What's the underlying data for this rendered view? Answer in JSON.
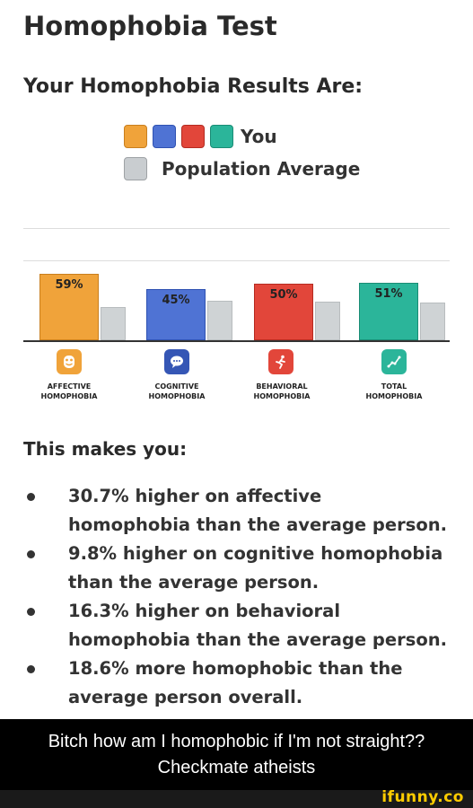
{
  "page": {
    "title": "Homophobia Test",
    "results_heading": "Your Homophobia Results Are:"
  },
  "legend": {
    "you_label": "You",
    "population_label": "Population Average",
    "you_colors": [
      "#f0a33a",
      "#4f73d4",
      "#e2463a",
      "#2bb59a"
    ],
    "population_color": "#c9cdd0"
  },
  "chart_data": {
    "type": "bar",
    "categories": [
      "AFFECTIVE HOMOPHOBIA",
      "COGNITIVE HOMOPHOBIA",
      "BEHAVIORAL HOMOPHOBIA",
      "TOTAL HOMOPHOBIA"
    ],
    "category_lines": [
      [
        "AFFECTIVE",
        "HOMOPHOBIA"
      ],
      [
        "COGNITIVE",
        "HOMOPHOBIA"
      ],
      [
        "BEHAVIORAL",
        "HOMOPHOBIA"
      ],
      [
        "TOTAL",
        "HOMOPHOBIA"
      ]
    ],
    "series": [
      {
        "name": "You",
        "values": [
          59,
          45,
          50,
          51
        ],
        "labels": [
          "59%",
          "45%",
          "50%",
          "51%"
        ],
        "colors": [
          "#f0a33a",
          "#4f73d4",
          "#e2463a",
          "#2bb59a"
        ]
      },
      {
        "name": "Population Average",
        "values": [
          29,
          35,
          34,
          33
        ],
        "color": "#cfd3d5"
      }
    ],
    "icons": [
      "mask-icon",
      "speech-bubble-icon",
      "running-figure-icon",
      "graph-icon"
    ]
  },
  "summary": {
    "heading": "This makes you:",
    "items": [
      "30.7% higher on affective homophobia than the average person.",
      "9.8% higher on cognitive homophobia than the average person.",
      "16.3% higher on behavioral homophobia than the average person.",
      "18.6% more homophobic than the average person overall."
    ]
  },
  "caption": {
    "text": "Bitch how am I homophobic if I'm not straight?? Checkmate atheists"
  },
  "watermark": {
    "text": "ifunny.co",
    "color": "#ffcc00"
  }
}
